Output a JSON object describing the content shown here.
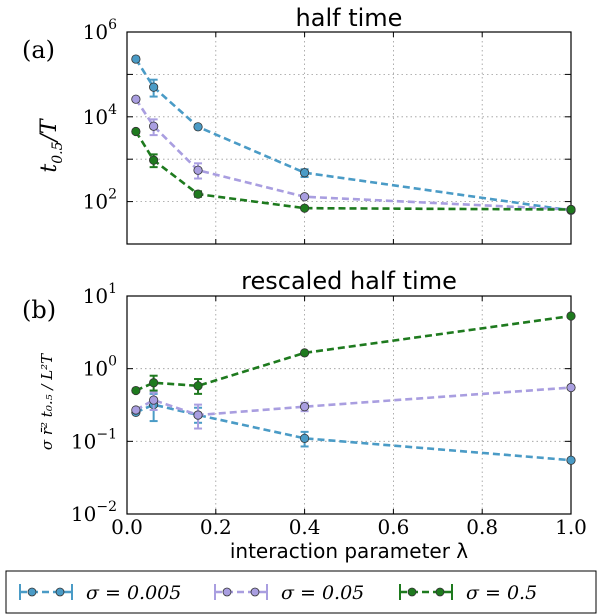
{
  "panels": [
    {
      "label": "(a)",
      "title": "half time",
      "ylabel_main": "t",
      "ylabel_sub": "0.5",
      "ylabel_tail": "/T",
      "yticks": [
        {
          "value": 100,
          "base": "10",
          "exp": "2"
        },
        {
          "value": 10000,
          "base": "10",
          "exp": "4"
        },
        {
          "value": 1000000,
          "base": "10",
          "exp": "6"
        }
      ]
    },
    {
      "label": "(b)",
      "title": "rescaled half time",
      "ylabel_text": "σ r̄² t₀.₅ / L²T",
      "yticks": [
        {
          "value": 0.01,
          "base": "10",
          "exp": "−2"
        },
        {
          "value": 0.1,
          "base": "10",
          "exp": "−1"
        },
        {
          "value": 1,
          "base": "10",
          "exp": "0"
        },
        {
          "value": 10,
          "base": "10",
          "exp": "1"
        }
      ]
    }
  ],
  "xaxis": {
    "label": "interaction parameter λ",
    "ticks": [
      "0.0",
      "0.2",
      "0.4",
      "0.6",
      "0.8",
      "1.0"
    ]
  },
  "legend": [
    {
      "label": "σ = 0.005",
      "color": "#4a9bc6"
    },
    {
      "label": "σ = 0.05",
      "color": "#a99ee0"
    },
    {
      "label": "σ = 0.5",
      "color": "#1e7a1e"
    }
  ],
  "chart_data": [
    {
      "type": "line",
      "title": "half time",
      "xlabel": "interaction parameter λ",
      "ylabel": "t_0.5 / T",
      "yscale": "log",
      "ylim": [
        10,
        1000000
      ],
      "xlim": [
        0,
        1
      ],
      "grid": true,
      "x": [
        0.02,
        0.06,
        0.16,
        0.4,
        1.0
      ],
      "series": [
        {
          "name": "σ = 0.005",
          "color": "#4a9bc6",
          "values": [
            230000,
            50000,
            5800,
            480,
            62
          ],
          "err_low": [
            0,
            20000,
            0,
            100,
            0
          ],
          "err_high": [
            0,
            25000,
            0,
            100,
            0
          ]
        },
        {
          "name": "σ = 0.05",
          "color": "#a99ee0",
          "values": [
            26000,
            6000,
            550,
            130,
            65
          ],
          "err_low": [
            0,
            2300,
            200,
            0,
            0
          ],
          "err_high": [
            0,
            2700,
            250,
            0,
            0
          ]
        },
        {
          "name": "σ = 0.5",
          "color": "#1e7a1e",
          "values": [
            4500,
            950,
            150,
            70,
            65
          ],
          "err_low": [
            0,
            300,
            20,
            0,
            0
          ],
          "err_high": [
            0,
            350,
            25,
            0,
            0
          ]
        }
      ]
    },
    {
      "type": "line",
      "title": "rescaled half time",
      "xlabel": "interaction parameter λ",
      "ylabel": "σ r̄² t_0.5 / (L² T)",
      "yscale": "log",
      "ylim": [
        0.01,
        10
      ],
      "xlim": [
        0,
        1
      ],
      "grid": true,
      "x": [
        0.02,
        0.06,
        0.16,
        0.4,
        1.0
      ],
      "series": [
        {
          "name": "σ = 0.005",
          "color": "#4a9bc6",
          "values": [
            0.25,
            0.32,
            0.23,
            0.11,
            0.055
          ],
          "err_low": [
            0,
            0.13,
            0.05,
            0.025,
            0
          ],
          "err_high": [
            0,
            0.13,
            0.06,
            0.025,
            0
          ]
        },
        {
          "name": "σ = 0.05",
          "color": "#a99ee0",
          "values": [
            0.27,
            0.37,
            0.23,
            0.3,
            0.55
          ],
          "err_low": [
            0,
            0.1,
            0.08,
            0.04,
            0
          ],
          "err_high": [
            0,
            0.1,
            0.09,
            0.04,
            0
          ]
        },
        {
          "name": "σ = 0.5",
          "color": "#1e7a1e",
          "values": [
            0.5,
            0.64,
            0.58,
            1.65,
            5.3
          ],
          "err_low": [
            0,
            0.14,
            0.13,
            0,
            0
          ],
          "err_high": [
            0,
            0.16,
            0.14,
            0,
            0
          ]
        }
      ]
    }
  ]
}
